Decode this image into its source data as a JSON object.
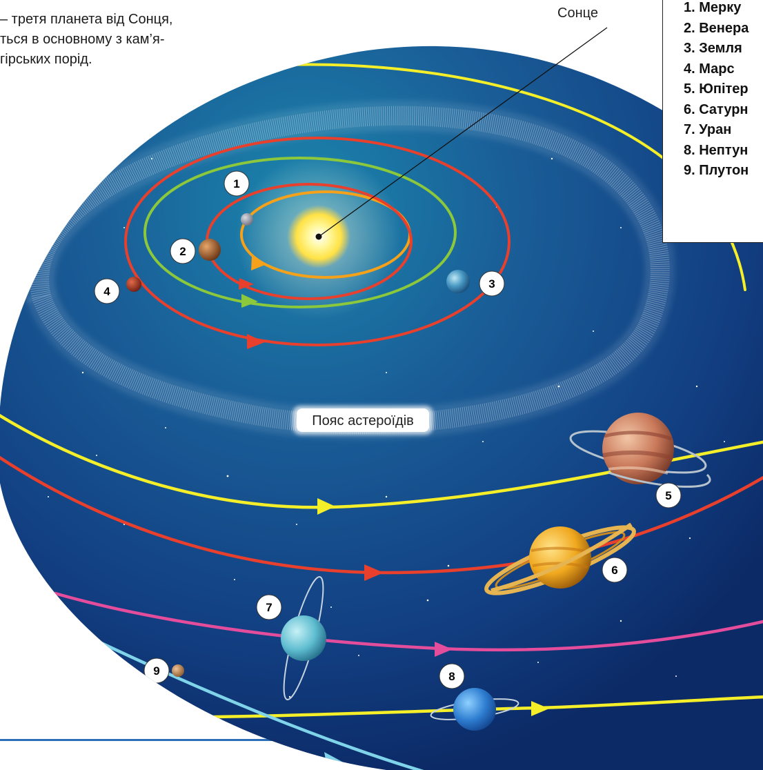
{
  "intro": {
    "lines": [
      "– третя планета від Сонця,",
      "ться в основному з кам’я-",
      "гірських порід."
    ]
  },
  "labels": {
    "sun": "Сонце",
    "asteroid_belt": "Пояс астероїдів"
  },
  "legend": {
    "items": [
      "1. Мерку",
      "2. Венера",
      "3. Земля",
      "4. Марс",
      "5. Юпітер",
      "6. Сатурн",
      "7. Уран",
      "8. Нептун",
      "9. Плутон"
    ]
  },
  "planet_numbers": [
    "1",
    "2",
    "3",
    "4",
    "5",
    "6",
    "7",
    "8",
    "9"
  ],
  "colors": {
    "space_dark": "#0d2a63",
    "space_light": "#1a78a8",
    "orbit_orange": "#f6a11a",
    "orbit_red": "#e8402c",
    "orbit_green": "#8cc83c",
    "orbit_yellow": "#f5ef2a",
    "orbit_pink": "#e44c9c",
    "orbit_cyan": "#7fd4ea",
    "sun": "#fff27a",
    "page_rule": "#2a6fb8"
  }
}
